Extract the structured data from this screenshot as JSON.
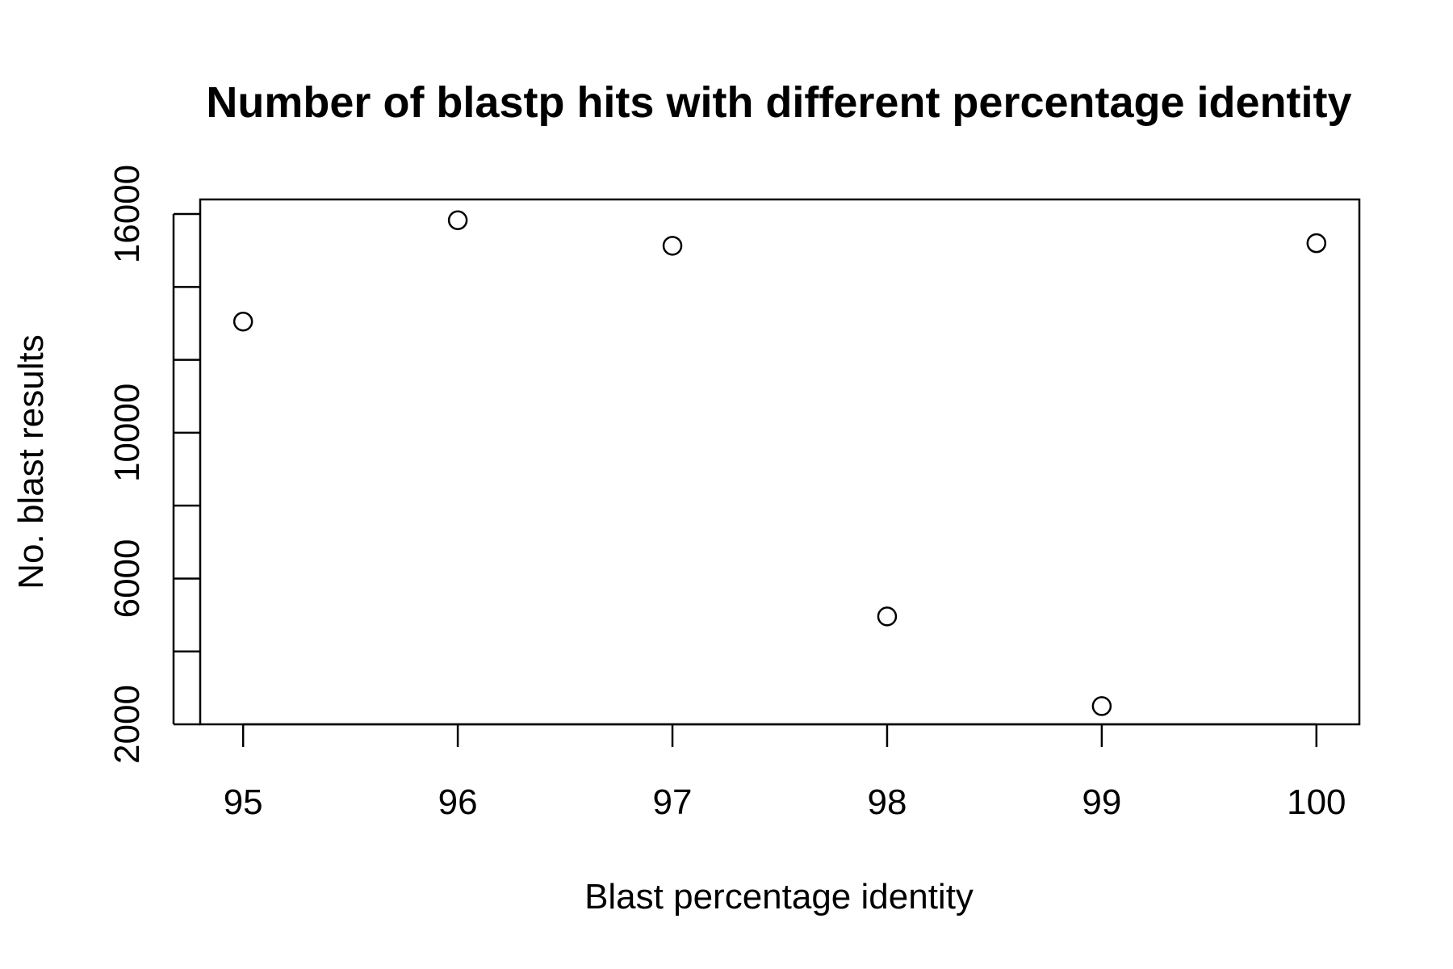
{
  "chart_data": {
    "type": "scatter",
    "title": "Number of blastp hits with different percentage identity",
    "xlabel": "Blast percentage identity",
    "ylabel": "No. blast results",
    "xlim": [
      94.8,
      100.2
    ],
    "ylim": [
      2000,
      16400
    ],
    "x_ticks": [
      95,
      96,
      97,
      98,
      99,
      100
    ],
    "x_tick_labels": [
      "95",
      "96",
      "97",
      "98",
      "99",
      "100"
    ],
    "y_ticks": [
      2000,
      4000,
      6000,
      8000,
      10000,
      12000,
      14000,
      16000
    ],
    "y_tick_labels": [
      "2000",
      "",
      "6000",
      "",
      "10000",
      "",
      "",
      "16000"
    ],
    "grid": false,
    "legend": "none",
    "series": [
      {
        "x": [
          95,
          96,
          97,
          98,
          99,
          100
        ],
        "y": [
          13050,
          15830,
          15130,
          4960,
          2500,
          15200
        ]
      }
    ]
  }
}
